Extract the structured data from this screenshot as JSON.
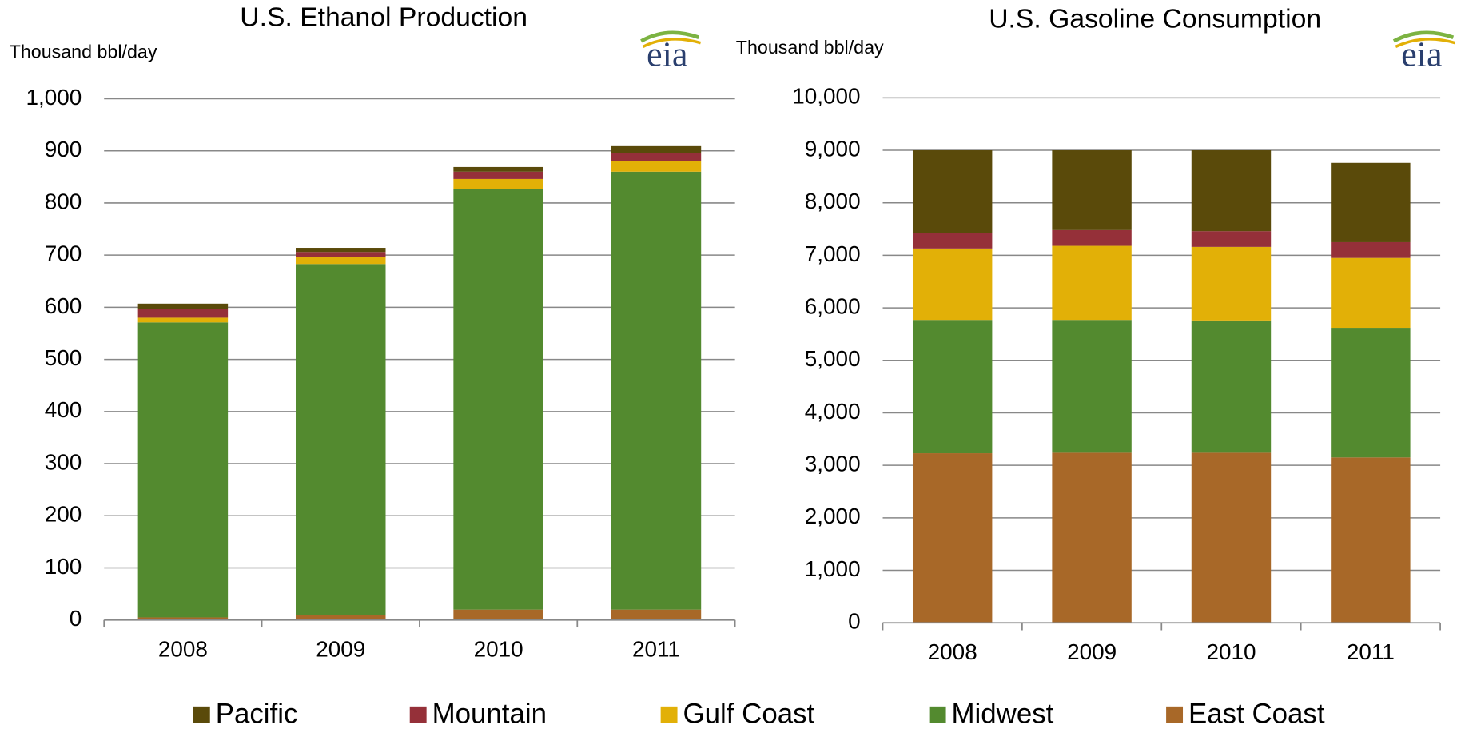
{
  "chart_data": [
    {
      "type": "bar",
      "stacked": true,
      "title": "U.S. Ethanol Production",
      "y_label": "Thousand bbl/day",
      "logo": "eia",
      "categories": [
        "2008",
        "2009",
        "2010",
        "2011"
      ],
      "series": [
        {
          "name": "East Coast",
          "color": "#a86828",
          "values": [
            5,
            10,
            20,
            20
          ]
        },
        {
          "name": "Midwest",
          "color": "#538a2f",
          "values": [
            566,
            673,
            806,
            840
          ]
        },
        {
          "name": "Gulf Coast",
          "color": "#e2b007",
          "values": [
            9,
            13,
            20,
            20
          ]
        },
        {
          "name": "Mountain",
          "color": "#953039",
          "values": [
            16,
            10,
            14,
            15
          ]
        },
        {
          "name": "Pacific",
          "color": "#5a4a0a",
          "values": [
            11,
            8,
            9,
            14
          ]
        }
      ],
      "ylim": [
        0,
        1000
      ],
      "yticks": [
        0,
        100,
        200,
        300,
        400,
        500,
        600,
        700,
        800,
        900,
        {
          "value": 1000,
          "label": "1,000"
        }
      ],
      "grid": true
    },
    {
      "type": "bar",
      "stacked": true,
      "title": "U.S. Gasoline Consumption",
      "y_label": "Thousand bbl/day",
      "logo": "eia",
      "categories": [
        "2008",
        "2009",
        "2010",
        "2011"
      ],
      "series": [
        {
          "name": "East Coast",
          "color": "#a86828",
          "values": [
            3230,
            3240,
            3240,
            3150
          ]
        },
        {
          "name": "Midwest",
          "color": "#538a2f",
          "values": [
            2540,
            2530,
            2520,
            2470
          ]
        },
        {
          "name": "Gulf Coast",
          "color": "#e2b007",
          "values": [
            1360,
            1410,
            1400,
            1330
          ]
        },
        {
          "name": "Mountain",
          "color": "#953039",
          "values": [
            290,
            300,
            300,
            300
          ]
        },
        {
          "name": "Pacific",
          "color": "#5a4a0a",
          "values": [
            1580,
            1520,
            1540,
            1510
          ]
        }
      ],
      "ylim": [
        0,
        10000
      ],
      "yticks": [
        0,
        {
          "value": 1000,
          "label": "1,000"
        },
        {
          "value": 2000,
          "label": "2,000"
        },
        {
          "value": 3000,
          "label": "3,000"
        },
        {
          "value": 4000,
          "label": "4,000"
        },
        {
          "value": 5000,
          "label": "5,000"
        },
        {
          "value": 6000,
          "label": "6,000"
        },
        {
          "value": 7000,
          "label": "7,000"
        },
        {
          "value": 8000,
          "label": "8,000"
        },
        {
          "value": 9000,
          "label": "9,000"
        },
        {
          "value": 10000,
          "label": "10,000"
        }
      ],
      "grid": true
    }
  ]
}
